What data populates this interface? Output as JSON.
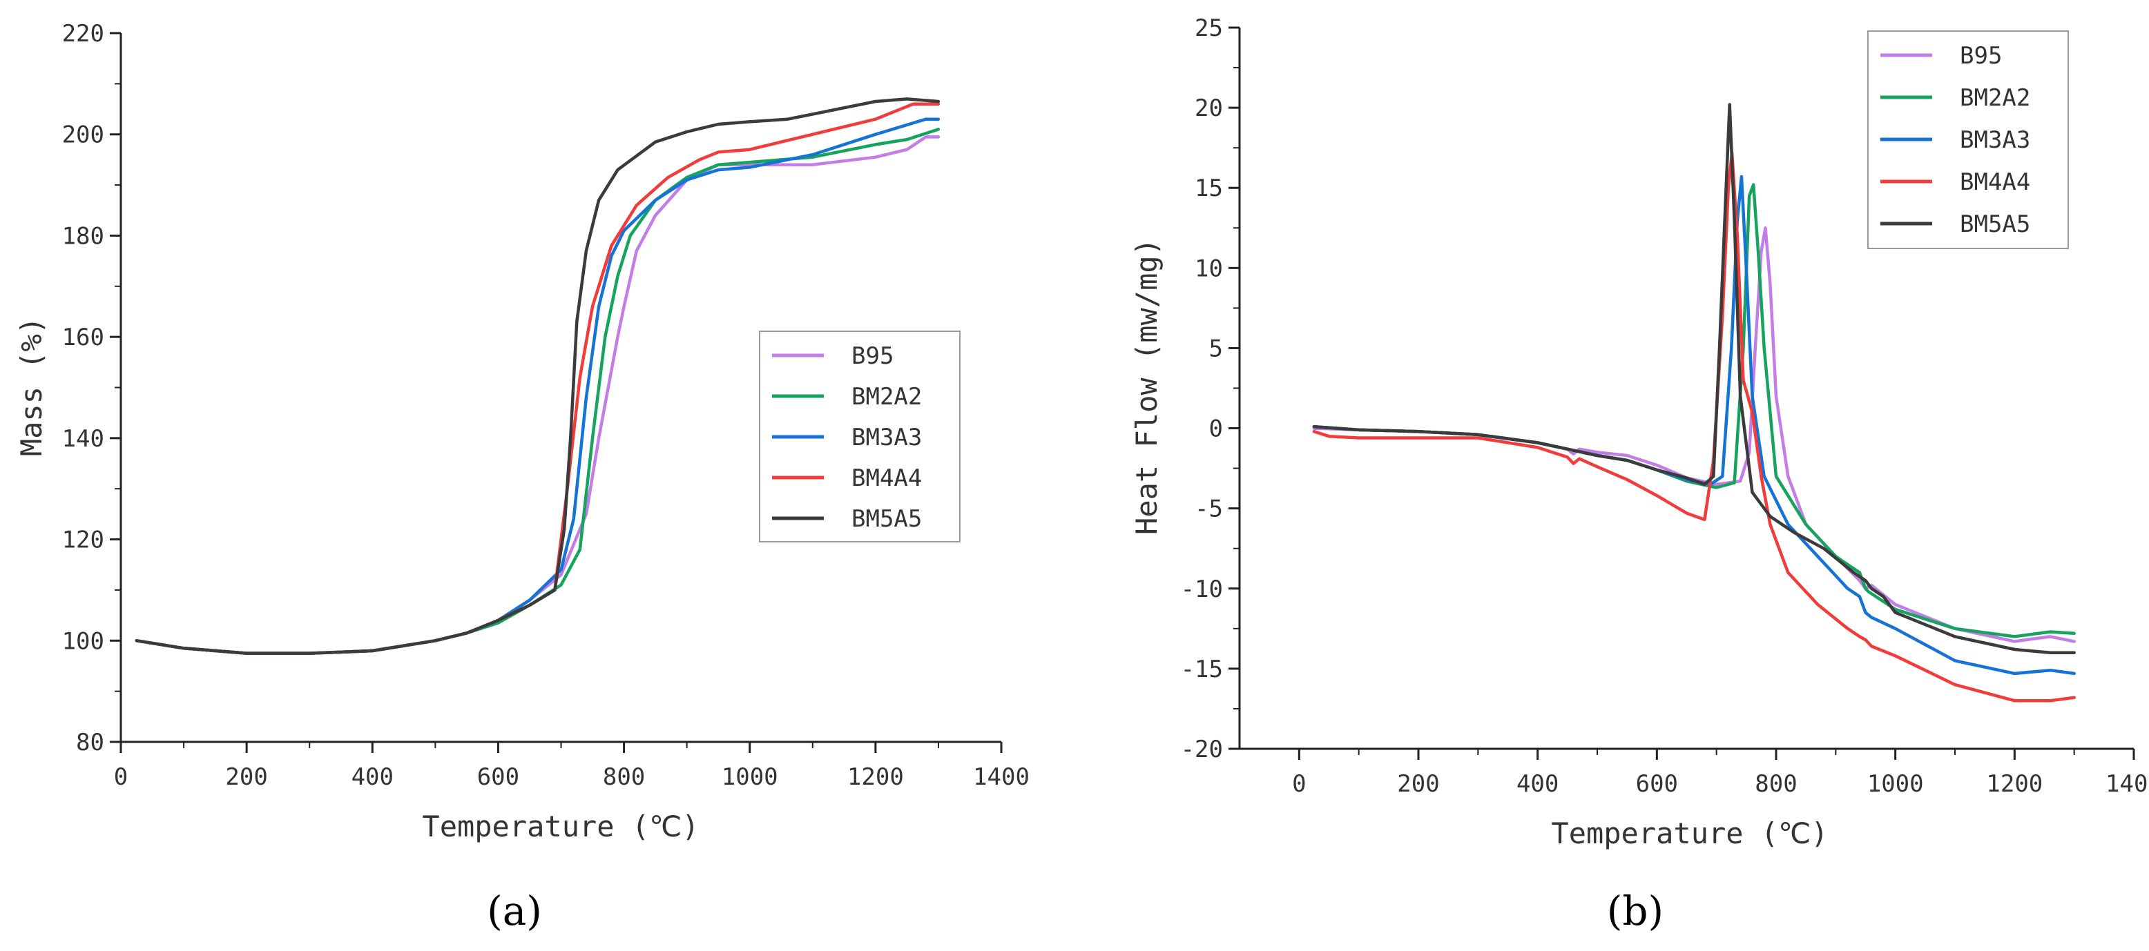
{
  "colors": {
    "B95": "#c27ee6",
    "BM2A2": "#16a35e",
    "BM3A3": "#1572d6",
    "BM4A4": "#f23c3c",
    "BM5A5": "#3b3b3b"
  },
  "chart_data": [
    {
      "type": "line",
      "panel_label": "(a)",
      "xlabel": "Temperature (℃)",
      "ylabel": "Mass (%)",
      "xlim": [
        0,
        1400
      ],
      "ylim": [
        80,
        220
      ],
      "xticks": [
        0,
        200,
        400,
        600,
        800,
        1000,
        1200,
        1400
      ],
      "yticks": [
        80,
        100,
        120,
        140,
        160,
        180,
        200,
        220
      ],
      "xtick_labels": [
        "0",
        "200",
        "400",
        "600",
        "800",
        "1000",
        "1200",
        "1400"
      ],
      "ytick_labels": [
        "80",
        "100",
        "120",
        "140",
        "160",
        "180",
        "200",
        "220"
      ],
      "legend_position": "center-right",
      "series": [
        {
          "name": "B95",
          "color_key": "B95",
          "x": [
            25,
            100,
            200,
            300,
            400,
            500,
            550,
            600,
            650,
            700,
            740,
            760,
            775,
            790,
            800,
            820,
            850,
            900,
            950,
            1000,
            1100,
            1200,
            1250,
            1280,
            1300
          ],
          "y": [
            100,
            98.5,
            97.5,
            97.5,
            98,
            100,
            101.5,
            104,
            108,
            113,
            125,
            140,
            150,
            160,
            166,
            177,
            184,
            191,
            194,
            194,
            194,
            195.5,
            197,
            199.5,
            199.5
          ]
        },
        {
          "name": "BM2A2",
          "color_key": "BM2A2",
          "x": [
            25,
            100,
            200,
            300,
            400,
            500,
            550,
            600,
            650,
            700,
            730,
            750,
            770,
            790,
            810,
            850,
            900,
            950,
            1000,
            1100,
            1200,
            1250,
            1300
          ],
          "y": [
            100,
            98.5,
            97.5,
            97.5,
            98,
            100,
            101.5,
            103.5,
            107,
            111,
            118,
            140,
            160,
            172,
            180,
            187,
            191.5,
            194,
            194.5,
            195.5,
            198,
            199,
            201
          ]
        },
        {
          "name": "BM3A3",
          "color_key": "BM3A3",
          "x": [
            25,
            100,
            200,
            300,
            400,
            500,
            550,
            600,
            650,
            700,
            720,
            740,
            760,
            780,
            800,
            850,
            900,
            950,
            1000,
            1100,
            1200,
            1280,
            1300
          ],
          "y": [
            100,
            98.5,
            97.5,
            97.5,
            98,
            100,
            101.5,
            104,
            108,
            114,
            124,
            148,
            166,
            176,
            181,
            187,
            191,
            193,
            193.5,
            196,
            200,
            203,
            203
          ]
        },
        {
          "name": "BM4A4",
          "color_key": "BM4A4",
          "x": [
            25,
            100,
            200,
            300,
            400,
            500,
            550,
            600,
            650,
            690,
            710,
            730,
            750,
            780,
            820,
            870,
            920,
            950,
            1000,
            1100,
            1200,
            1260,
            1300
          ],
          "y": [
            100,
            98.5,
            97.5,
            97.5,
            98,
            100,
            101.5,
            104,
            107,
            110,
            130,
            152,
            166,
            178,
            186,
            191.5,
            195,
            196.5,
            197,
            200,
            203,
            206,
            206
          ]
        },
        {
          "name": "BM5A5",
          "color_key": "BM5A5",
          "x": [
            25,
            100,
            200,
            300,
            400,
            500,
            550,
            600,
            650,
            690,
            705,
            715,
            725,
            740,
            760,
            790,
            850,
            900,
            950,
            1000,
            1060,
            1100,
            1200,
            1250,
            1300
          ],
          "y": [
            100,
            98.5,
            97.5,
            97.5,
            98,
            100,
            101.5,
            104,
            107,
            110,
            122,
            140,
            163,
            177,
            187,
            193,
            198.5,
            200.5,
            202,
            202.5,
            203,
            204,
            206.5,
            207,
            206.5
          ]
        }
      ]
    },
    {
      "type": "line",
      "panel_label": "(b)",
      "xlabel": "Temperature (℃)",
      "ylabel": "Heat Flow (mw/mg)",
      "xlim": [
        -100,
        1400
      ],
      "ylim": [
        -20,
        25
      ],
      "xticks": [
        0,
        200,
        400,
        600,
        800,
        1000,
        1200,
        1400
      ],
      "yticks": [
        -20,
        -15,
        -10,
        -5,
        0,
        5,
        10,
        15,
        20,
        25
      ],
      "xtick_labels": [
        "0",
        "200",
        "400",
        "600",
        "800",
        "1000",
        "1200",
        "1400"
      ],
      "ytick_labels": [
        "-20",
        "-15",
        "-10",
        "-5",
        "0",
        "5",
        "10",
        "15",
        "20",
        "25"
      ],
      "legend_position": "top-right",
      "series": [
        {
          "name": "B95",
          "color_key": "B95",
          "x": [
            25,
            100,
            200,
            300,
            400,
            450,
            460,
            470,
            500,
            550,
            600,
            650,
            700,
            740,
            755,
            765,
            775,
            782,
            790,
            800,
            820,
            850,
            900,
            940,
            950,
            960,
            1000,
            1100,
            1200,
            1260,
            1300
          ],
          "y": [
            0,
            -0.1,
            -0.2,
            -0.4,
            -0.9,
            -1.3,
            -1.6,
            -1.3,
            -1.5,
            -1.7,
            -2.3,
            -3.1,
            -3.5,
            -3.3,
            -1.5,
            5,
            11,
            12.5,
            9,
            2,
            -3,
            -6,
            -8,
            -9.5,
            -10,
            -9.8,
            -11,
            -12.5,
            -13.3,
            -13,
            -13.3
          ]
        },
        {
          "name": "BM2A2",
          "color_key": "BM2A2",
          "x": [
            25,
            100,
            200,
            300,
            400,
            450,
            500,
            550,
            600,
            650,
            700,
            730,
            745,
            755,
            762,
            770,
            780,
            800,
            850,
            900,
            940,
            950,
            955,
            1000,
            1100,
            1200,
            1260,
            1300
          ],
          "y": [
            0.1,
            -0.1,
            -0.2,
            -0.4,
            -0.9,
            -1.3,
            -1.7,
            -2,
            -2.6,
            -3.3,
            -3.7,
            -3.4,
            5,
            14.5,
            15.2,
            11,
            5,
            -3,
            -6,
            -8,
            -9,
            -10,
            -10.2,
            -11.3,
            -12.5,
            -13,
            -12.7,
            -12.8
          ]
        },
        {
          "name": "BM3A3",
          "color_key": "BM3A3",
          "x": [
            25,
            100,
            200,
            300,
            400,
            450,
            500,
            550,
            600,
            650,
            690,
            710,
            725,
            735,
            742,
            750,
            760,
            780,
            820,
            870,
            920,
            940,
            950,
            960,
            1000,
            1100,
            1200,
            1260,
            1300
          ],
          "y": [
            0.1,
            -0.1,
            -0.2,
            -0.4,
            -0.9,
            -1.3,
            -1.7,
            -2,
            -2.6,
            -3.2,
            -3.5,
            -3,
            5,
            13,
            15.7,
            10,
            2,
            -3,
            -6,
            -8,
            -10,
            -10.5,
            -11.5,
            -11.8,
            -12.5,
            -14.5,
            -15.3,
            -15.1,
            -15.3
          ]
        },
        {
          "name": "BM4A4",
          "color_key": "BM4A4",
          "x": [
            25,
            50,
            100,
            200,
            300,
            400,
            450,
            460,
            470,
            500,
            550,
            600,
            650,
            680,
            695,
            710,
            720,
            726,
            735,
            745,
            760,
            775,
            790,
            820,
            870,
            920,
            940,
            950,
            960,
            1000,
            1100,
            1200,
            1260,
            1300
          ],
          "y": [
            -0.2,
            -0.5,
            -0.6,
            -0.6,
            -0.6,
            -1.2,
            -1.8,
            -2.2,
            -1.9,
            -2.4,
            -3.2,
            -4.2,
            -5.3,
            -5.7,
            -2,
            7,
            15,
            17.2,
            12,
            3,
            1,
            -3,
            -6,
            -9,
            -11,
            -12.5,
            -13,
            -13.2,
            -13.6,
            -14.2,
            -16,
            -17,
            -17,
            -16.8
          ]
        },
        {
          "name": "BM5A5",
          "color_key": "BM5A5",
          "x": [
            25,
            100,
            200,
            300,
            400,
            450,
            500,
            550,
            600,
            650,
            680,
            695,
            705,
            715,
            722,
            730,
            740,
            760,
            790,
            830,
            880,
            930,
            950,
            960,
            980,
            1000,
            1100,
            1200,
            1260,
            1300
          ],
          "y": [
            0.1,
            -0.1,
            -0.2,
            -0.4,
            -0.9,
            -1.3,
            -1.7,
            -2,
            -2.6,
            -3.1,
            -3.5,
            -3,
            5,
            14,
            20.2,
            13,
            2,
            -4,
            -5.5,
            -6.5,
            -7.5,
            -9,
            -9.5,
            -10,
            -10.5,
            -11.5,
            -13,
            -13.8,
            -14,
            -14
          ]
        }
      ]
    }
  ]
}
